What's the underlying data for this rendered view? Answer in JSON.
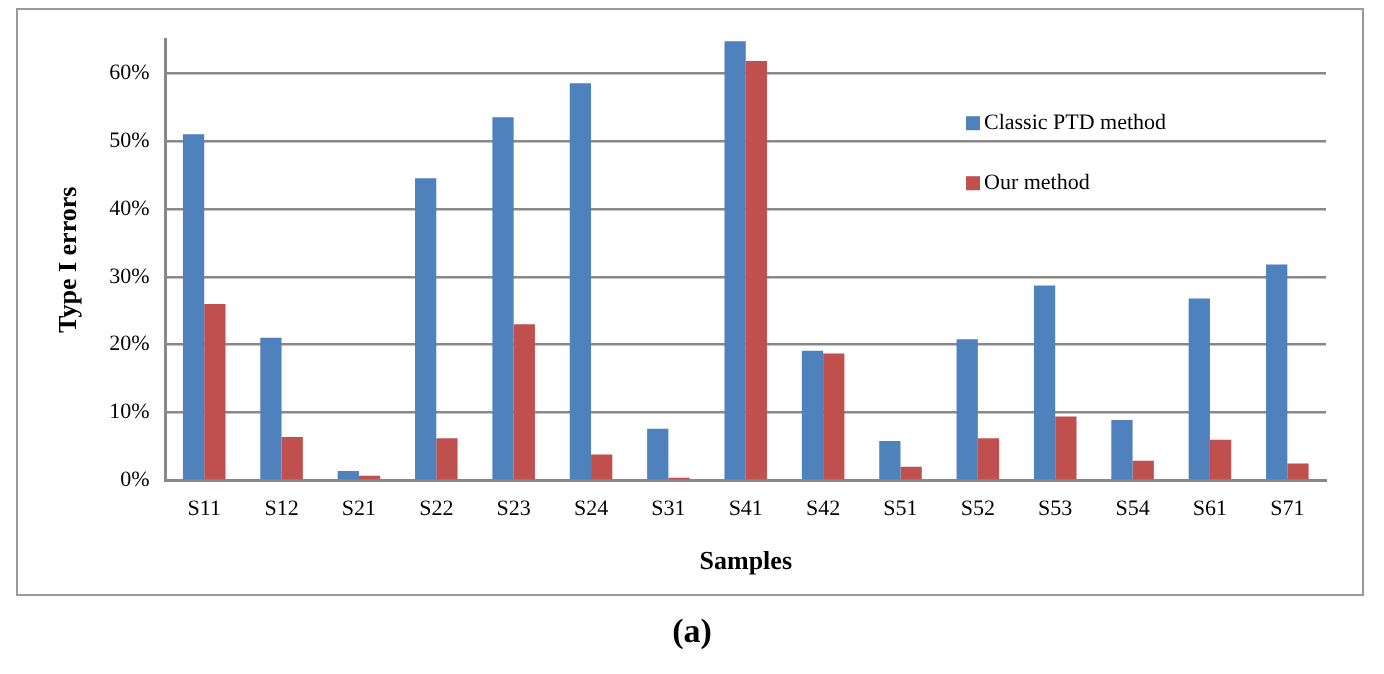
{
  "chart_data": {
    "type": "bar",
    "xlabel": "Samples",
    "ylabel": "Type I errors",
    "categories": [
      "S11",
      "S12",
      "S21",
      "S22",
      "S23",
      "S24",
      "S31",
      "S41",
      "S42",
      "S51",
      "S52",
      "S53",
      "S54",
      "S61",
      "S71"
    ],
    "series": [
      {
        "name": "Classic PTD method",
        "color": "#4f81bd",
        "values": [
          51,
          21,
          1.4,
          44.5,
          53.5,
          58.5,
          7.6,
          64.7,
          19.1,
          5.8,
          20.8,
          28.7,
          8.9,
          26.8,
          31.8
        ]
      },
      {
        "name": "Our method",
        "color": "#c0504d",
        "values": [
          26,
          6.4,
          0.7,
          6.2,
          23,
          3.8,
          0.4,
          61.8,
          18.7,
          2,
          6.2,
          9.4,
          2.9,
          6,
          2.5
        ]
      }
    ],
    "ylim": [
      0,
      65
    ],
    "yticks": [
      {
        "value": 0,
        "label": "0%"
      },
      {
        "value": 10,
        "label": "10%"
      },
      {
        "value": 20,
        "label": "20%"
      },
      {
        "value": 30,
        "label": "30%"
      },
      {
        "value": 40,
        "label": "40%"
      },
      {
        "value": 50,
        "label": "50%"
      },
      {
        "value": 60,
        "label": "60%"
      }
    ],
    "grid": "y",
    "legend": "top right",
    "annotations": [
      "(a)"
    ]
  }
}
